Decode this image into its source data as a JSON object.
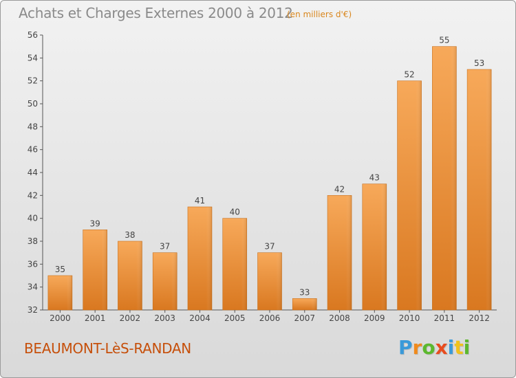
{
  "title": "Achats et Charges Externes 2000 à 2012",
  "subtitle": "(en milliers d'€)",
  "commune": "BEAUMONT-LèS-RANDAN",
  "logo": {
    "letters": [
      "P",
      "r",
      "o",
      "x",
      "i",
      "t",
      "i"
    ],
    "colors": [
      "#3a9ad9",
      "#f08a1c",
      "#5cb82e",
      "#e84c1e",
      "#3a9ad9",
      "#f0c21c",
      "#5cb82e"
    ]
  },
  "colors": {
    "bar_light": "#f7a95a",
    "bar_dark": "#d97820",
    "title": "#8a8a8a",
    "accent": "#d9861c",
    "commune": "#c64f0a"
  },
  "chart_data": {
    "type": "bar",
    "categories": [
      "2000",
      "2001",
      "2002",
      "2003",
      "2004",
      "2005",
      "2006",
      "2007",
      "2008",
      "2009",
      "2010",
      "2011",
      "2012"
    ],
    "values": [
      35,
      39,
      38,
      37,
      41,
      40,
      37,
      33,
      42,
      43,
      52,
      55,
      53
    ],
    "ylim": [
      32,
      56
    ],
    "yticks": [
      32,
      34,
      36,
      38,
      40,
      42,
      44,
      46,
      48,
      50,
      52,
      54,
      56
    ],
    "grid": false,
    "data_labels": true
  }
}
